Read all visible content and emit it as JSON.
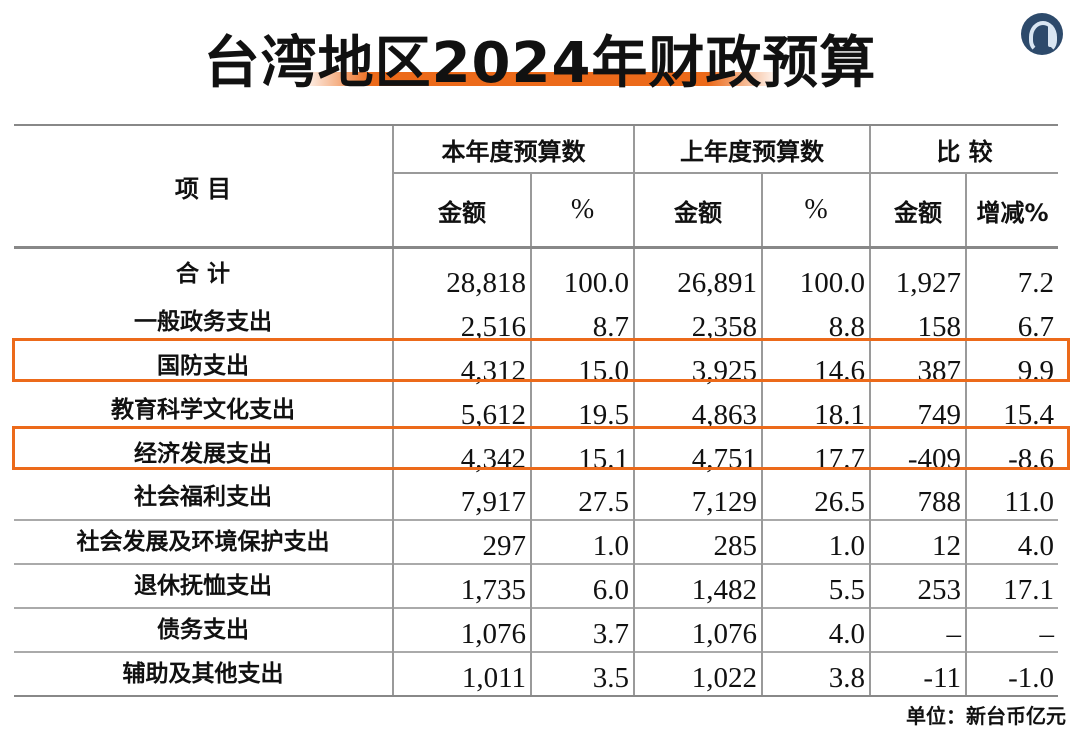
{
  "title": "台湾地区2024年财政预算",
  "unit": "单位：新台币亿元",
  "accent_color": "#ec6a1a",
  "header": {
    "item": "项 目",
    "current": "本年度预算数",
    "previous": "上年度预算数",
    "compare": "比 较",
    "amount": "金额",
    "percent": "%",
    "change_pct": "增减%"
  },
  "rows": [
    {
      "label": "合 计",
      "cur_amt": "28,818",
      "cur_pct": "100.0",
      "prev_amt": "26,891",
      "prev_pct": "100.0",
      "diff_amt": "1,927",
      "diff_pct": "7.2"
    },
    {
      "label": "一般政务支出",
      "cur_amt": "2,516",
      "cur_pct": "8.7",
      "prev_amt": "2,358",
      "prev_pct": "8.8",
      "diff_amt": "158",
      "diff_pct": "6.7"
    },
    {
      "label": "国防支出",
      "cur_amt": "4,312",
      "cur_pct": "15.0",
      "prev_amt": "3,925",
      "prev_pct": "14.6",
      "diff_amt": "387",
      "diff_pct": "9.9",
      "highlighted": true
    },
    {
      "label": "教育科学文化支出",
      "cur_amt": "5,612",
      "cur_pct": "19.5",
      "prev_amt": "4,863",
      "prev_pct": "18.1",
      "diff_amt": "749",
      "diff_pct": "15.4"
    },
    {
      "label": "经济发展支出",
      "cur_amt": "4,342",
      "cur_pct": "15.1",
      "prev_amt": "4,751",
      "prev_pct": "17.7",
      "diff_amt": "-409",
      "diff_pct": "-8.6",
      "highlighted": true
    },
    {
      "label": "社会福利支出",
      "cur_amt": "7,917",
      "cur_pct": "27.5",
      "prev_amt": "7,129",
      "prev_pct": "26.5",
      "diff_amt": "788",
      "diff_pct": "11.0"
    },
    {
      "label": "社会发展及环境保护支出",
      "cur_amt": "297",
      "cur_pct": "1.0",
      "prev_amt": "285",
      "prev_pct": "1.0",
      "diff_amt": "12",
      "diff_pct": "4.0"
    },
    {
      "label": "退休抚恤支出",
      "cur_amt": "1,735",
      "cur_pct": "6.0",
      "prev_amt": "1,482",
      "prev_pct": "5.5",
      "diff_amt": "253",
      "diff_pct": "17.1"
    },
    {
      "label": "债务支出",
      "cur_amt": "1,076",
      "cur_pct": "3.7",
      "prev_amt": "1,076",
      "prev_pct": "4.0",
      "diff_amt": "–",
      "diff_pct": "–"
    },
    {
      "label": "辅助及其他支出",
      "cur_amt": "1,011",
      "cur_pct": "3.5",
      "prev_amt": "1,022",
      "prev_pct": "3.8",
      "diff_amt": "-11",
      "diff_pct": "-1.0"
    }
  ]
}
